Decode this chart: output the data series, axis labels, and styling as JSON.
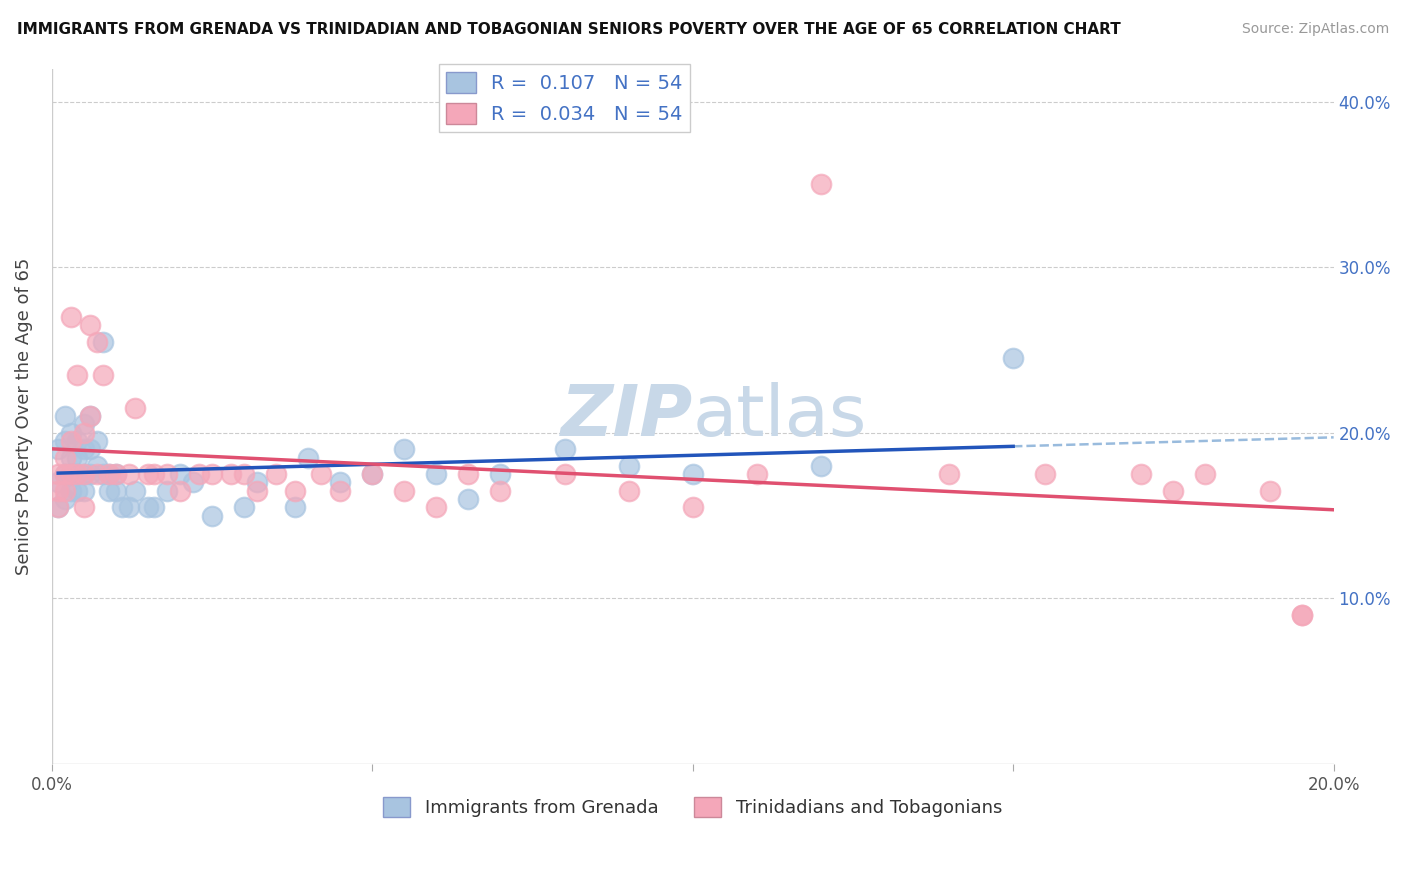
{
  "title": "IMMIGRANTS FROM GRENADA VS TRINIDADIAN AND TOBAGONIAN SENIORS POVERTY OVER THE AGE OF 65 CORRELATION CHART",
  "source": "Source: ZipAtlas.com",
  "ylabel": "Seniors Poverty Over the Age of 65",
  "legend_label1": "Immigrants from Grenada",
  "legend_label2": "Trinidadians and Tobagonians",
  "r1": 0.107,
  "n1": 54,
  "r2": 0.034,
  "n2": 54,
  "color1": "#a8c4e0",
  "color2": "#f4a7b9",
  "line1_color": "#2255bb",
  "line2_color": "#e05070",
  "dashed_color": "#99bbdd",
  "xmin": 0.0,
  "xmax": 0.2,
  "ymin": 0.0,
  "ymax": 0.42,
  "xticks": [
    0.0,
    0.05,
    0.1,
    0.15,
    0.2
  ],
  "yticks": [
    0.0,
    0.1,
    0.2,
    0.3,
    0.4
  ],
  "scatter1_x": [
    0.001,
    0.001,
    0.001,
    0.002,
    0.002,
    0.002,
    0.002,
    0.003,
    0.003,
    0.003,
    0.003,
    0.004,
    0.004,
    0.004,
    0.004,
    0.005,
    0.005,
    0.005,
    0.005,
    0.006,
    0.006,
    0.006,
    0.007,
    0.007,
    0.008,
    0.008,
    0.009,
    0.009,
    0.01,
    0.01,
    0.011,
    0.012,
    0.013,
    0.015,
    0.016,
    0.018,
    0.02,
    0.022,
    0.025,
    0.03,
    0.032,
    0.038,
    0.04,
    0.045,
    0.05,
    0.055,
    0.06,
    0.065,
    0.07,
    0.08,
    0.09,
    0.1,
    0.12,
    0.15
  ],
  "scatter1_y": [
    0.19,
    0.17,
    0.155,
    0.21,
    0.195,
    0.175,
    0.16,
    0.2,
    0.185,
    0.175,
    0.165,
    0.195,
    0.185,
    0.175,
    0.165,
    0.205,
    0.19,
    0.175,
    0.165,
    0.21,
    0.19,
    0.175,
    0.195,
    0.18,
    0.255,
    0.175,
    0.175,
    0.165,
    0.175,
    0.165,
    0.155,
    0.155,
    0.165,
    0.155,
    0.155,
    0.165,
    0.175,
    0.17,
    0.15,
    0.155,
    0.17,
    0.155,
    0.185,
    0.17,
    0.175,
    0.19,
    0.175,
    0.16,
    0.175,
    0.19,
    0.18,
    0.175,
    0.18,
    0.245
  ],
  "scatter2_x": [
    0.001,
    0.001,
    0.001,
    0.002,
    0.002,
    0.002,
    0.003,
    0.003,
    0.003,
    0.004,
    0.004,
    0.005,
    0.005,
    0.005,
    0.006,
    0.006,
    0.007,
    0.007,
    0.008,
    0.009,
    0.01,
    0.012,
    0.013,
    0.015,
    0.016,
    0.018,
    0.02,
    0.023,
    0.025,
    0.028,
    0.03,
    0.032,
    0.035,
    0.038,
    0.042,
    0.045,
    0.05,
    0.055,
    0.06,
    0.065,
    0.07,
    0.08,
    0.09,
    0.1,
    0.11,
    0.12,
    0.14,
    0.155,
    0.17,
    0.175,
    0.18,
    0.19,
    0.195,
    0.195
  ],
  "scatter2_y": [
    0.175,
    0.165,
    0.155,
    0.185,
    0.175,
    0.165,
    0.27,
    0.195,
    0.175,
    0.235,
    0.175,
    0.2,
    0.175,
    0.155,
    0.265,
    0.21,
    0.255,
    0.175,
    0.235,
    0.175,
    0.175,
    0.175,
    0.215,
    0.175,
    0.175,
    0.175,
    0.165,
    0.175,
    0.175,
    0.175,
    0.175,
    0.165,
    0.175,
    0.165,
    0.175,
    0.165,
    0.175,
    0.165,
    0.155,
    0.175,
    0.165,
    0.175,
    0.165,
    0.155,
    0.175,
    0.35,
    0.175,
    0.175,
    0.175,
    0.165,
    0.175,
    0.165,
    0.09,
    0.09
  ],
  "watermark": "ZIPatlas",
  "watermark_color": "#c8d8e8"
}
